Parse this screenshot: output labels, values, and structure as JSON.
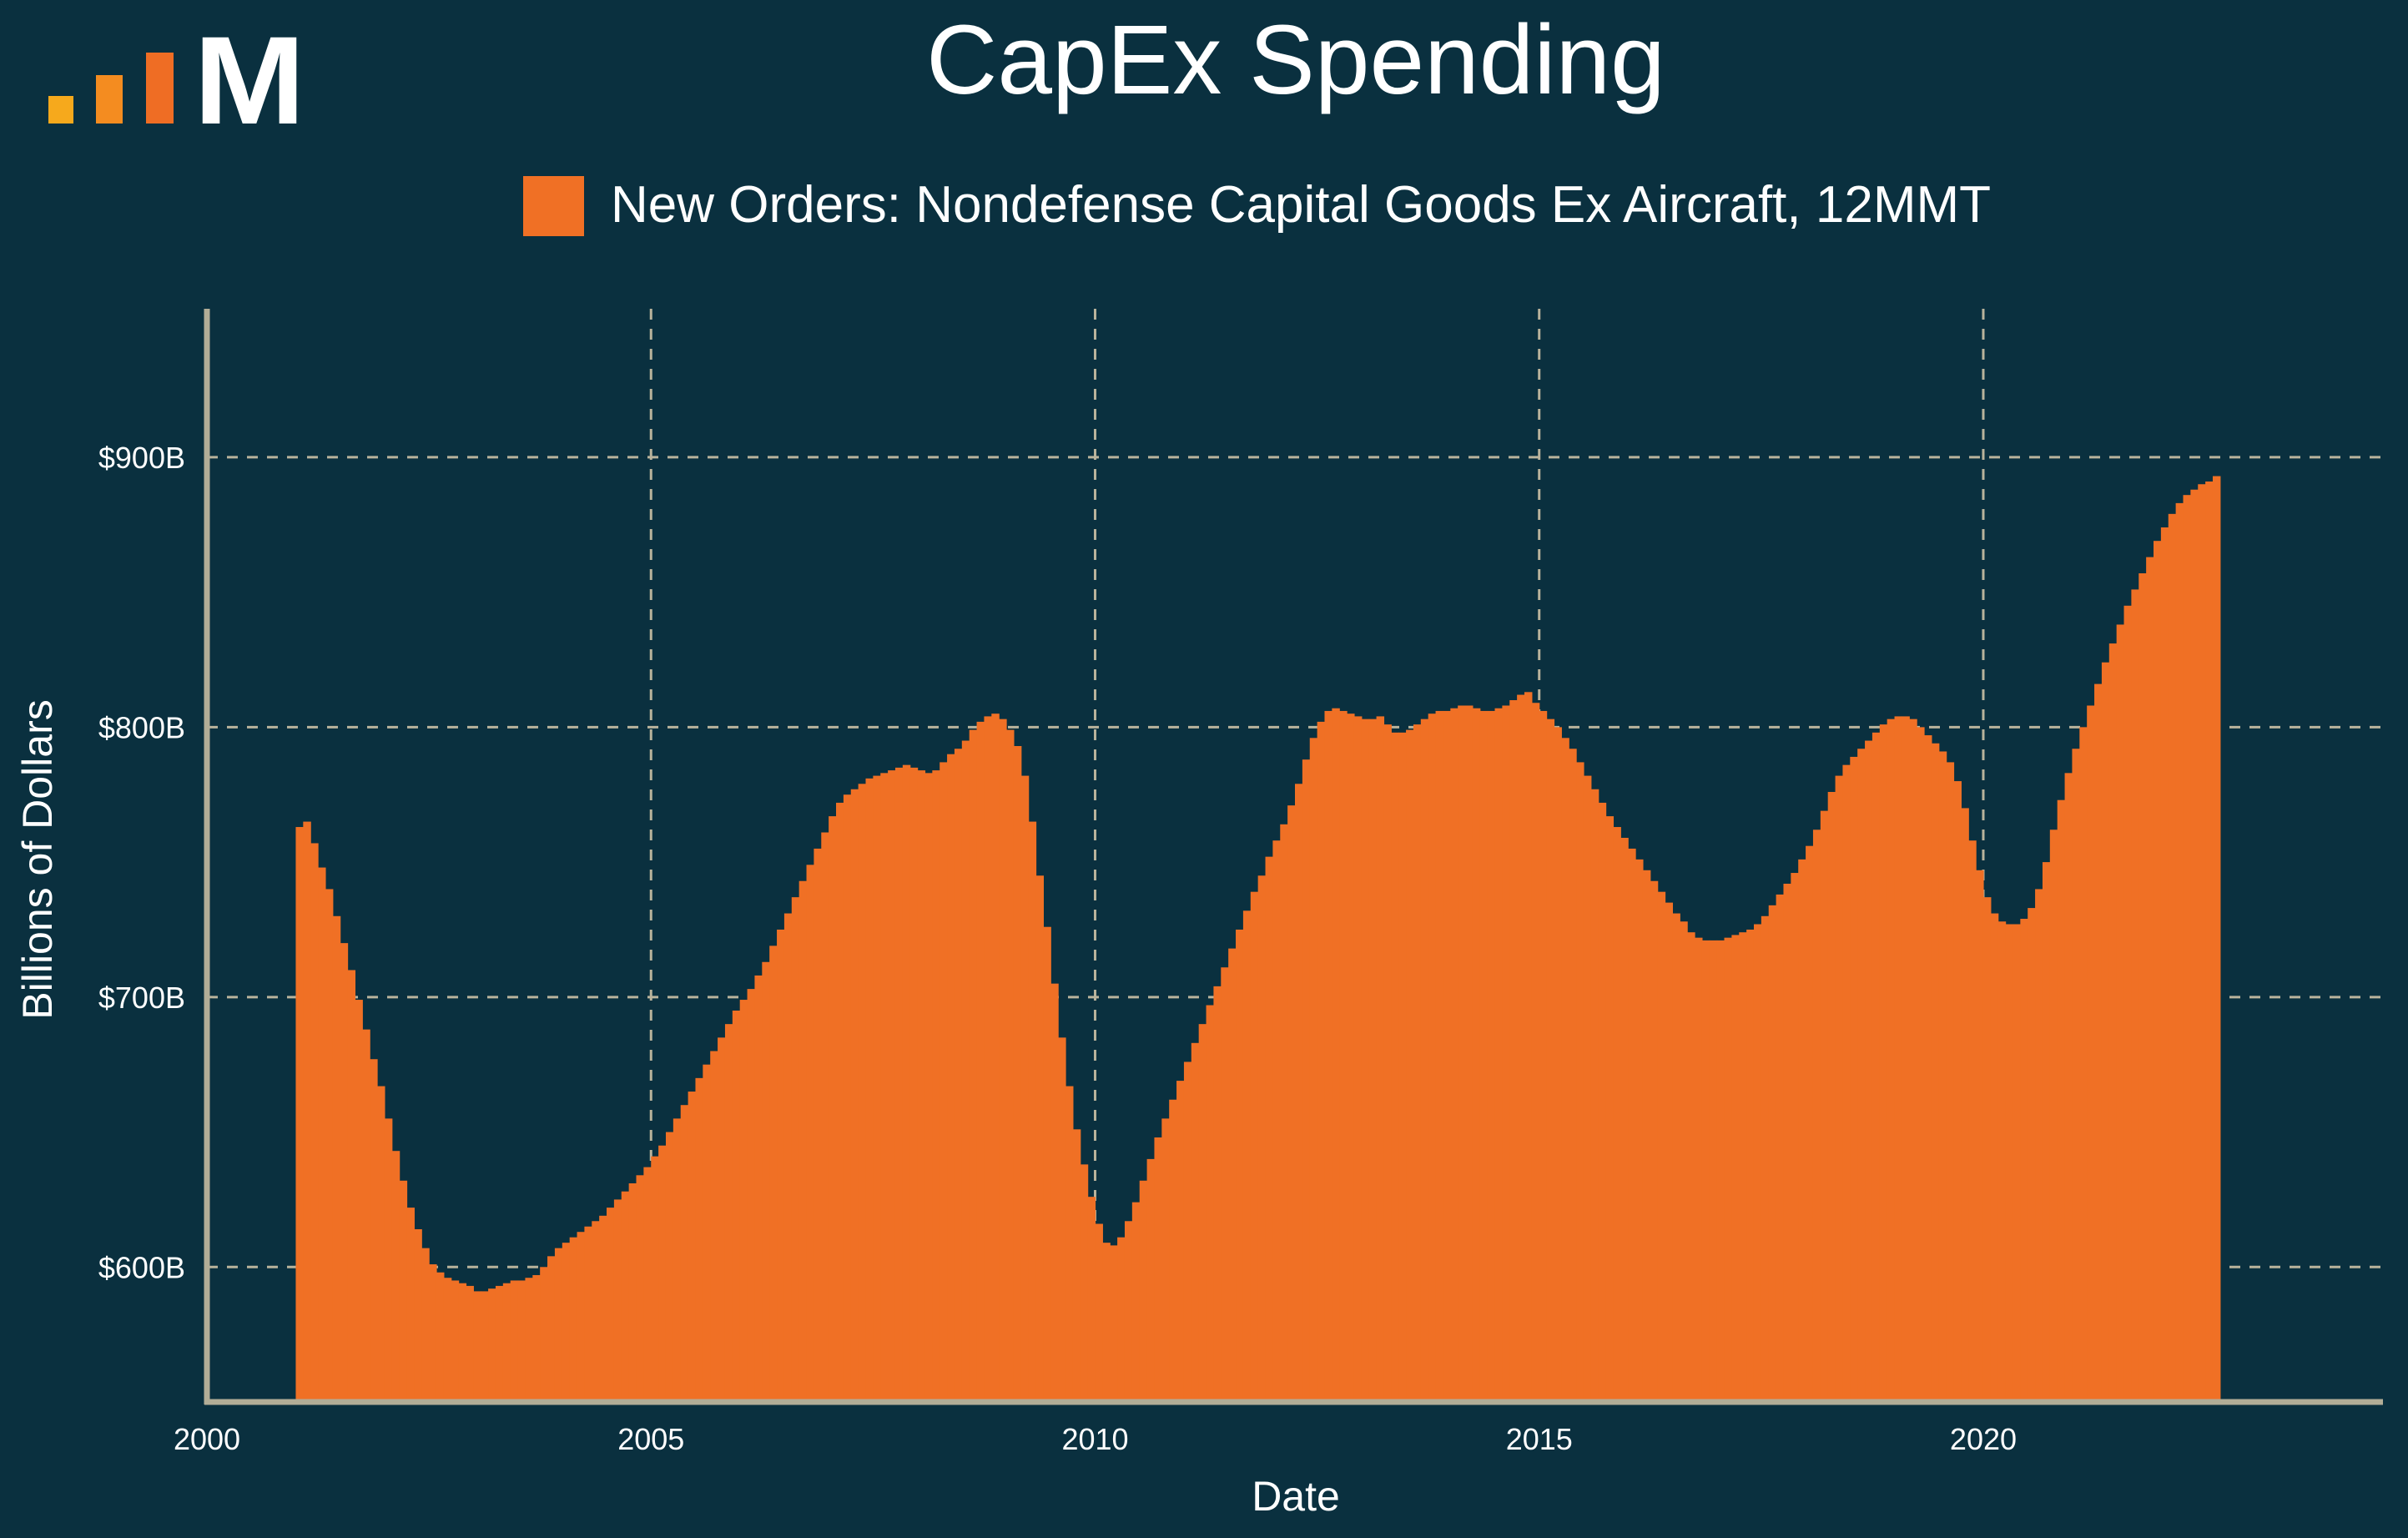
{
  "colors": {
    "background": "#0a303f",
    "bar": "#f07025",
    "grid": "#b9b39c",
    "axis": "#b2ad97",
    "text": "#ffffff",
    "logo_bar1": "#f6a91c",
    "logo_bar2": "#f48c20",
    "logo_bar3": "#ef6d24",
    "logo_letter": "#ffffff"
  },
  "logo": {
    "letter": "M"
  },
  "chart_data": {
    "type": "bar",
    "title": "CapEx Spending",
    "xlabel": "Date",
    "ylabel": "Billions of Dollars",
    "legend_position": "top",
    "grid": true,
    "xlim": [
      2000,
      2024.5
    ],
    "ylim": [
      550,
      955
    ],
    "x_ticks": [
      "2000",
      "2005",
      "2010",
      "2015",
      "2020"
    ],
    "y_ticks": [
      "$600B",
      "$700B",
      "$800B",
      "$900B"
    ],
    "series": [
      {
        "name": "New Orders: Nondefense Capital Goods Ex Aircraft, 12MMT",
        "start": "2001-01",
        "frequency": "monthly",
        "values": [
          763,
          765,
          757,
          748,
          740,
          730,
          720,
          710,
          699,
          688,
          677,
          667,
          655,
          643,
          632,
          622,
          614,
          607,
          601,
          598,
          596,
          595,
          594,
          593,
          591,
          591,
          592,
          593,
          594,
          595,
          595,
          596,
          597,
          600,
          604,
          607,
          609,
          611,
          613,
          615,
          617,
          619,
          622,
          625,
          628,
          631,
          634,
          637,
          641,
          645,
          650,
          655,
          660,
          665,
          670,
          675,
          680,
          685,
          690,
          695,
          699,
          703,
          708,
          713,
          719,
          725,
          731,
          737,
          743,
          749,
          755,
          761,
          767,
          772,
          775,
          777,
          779,
          781,
          782,
          783,
          784,
          785,
          786,
          785,
          784,
          783,
          784,
          787,
          790,
          792,
          795,
          799,
          802,
          804,
          805,
          803,
          799,
          793,
          782,
          765,
          745,
          726,
          705,
          685,
          667,
          651,
          638,
          626,
          616,
          609,
          608,
          611,
          617,
          624,
          632,
          640,
          648,
          655,
          662,
          669,
          676,
          683,
          690,
          697,
          704,
          711,
          718,
          725,
          732,
          739,
          745,
          752,
          758,
          764,
          771,
          779,
          788,
          796,
          802,
          806,
          807,
          806,
          805,
          804,
          803,
          803,
          804,
          801,
          798,
          798,
          799,
          801,
          803,
          805,
          806,
          806,
          807,
          808,
          808,
          807,
          806,
          806,
          807,
          808,
          810,
          812,
          813,
          809,
          806,
          803,
          800,
          796,
          792,
          787,
          782,
          777,
          772,
          767,
          763,
          759,
          755,
          751,
          747,
          743,
          739,
          735,
          731,
          728,
          724,
          722,
          721,
          721,
          721,
          722,
          723,
          724,
          725,
          727,
          730,
          734,
          738,
          742,
          746,
          751,
          756,
          762,
          769,
          776,
          782,
          786,
          789,
          792,
          795,
          798,
          801,
          803,
          804,
          804,
          803,
          800,
          797,
          794,
          791,
          787,
          780,
          770,
          758,
          747,
          737,
          731,
          728,
          727,
          727,
          729,
          733,
          740,
          750,
          762,
          773,
          783,
          792,
          800,
          808,
          816,
          824,
          831,
          838,
          845,
          851,
          857,
          863,
          869,
          874,
          879,
          883,
          886,
          888,
          890,
          891,
          893
        ]
      }
    ]
  }
}
